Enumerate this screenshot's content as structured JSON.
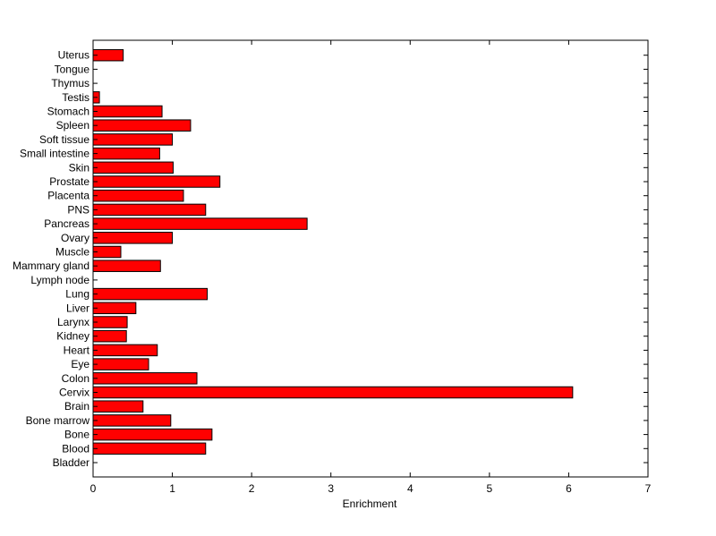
{
  "chart_data": {
    "type": "bar",
    "orientation": "horizontal",
    "title": "",
    "xlabel": "Enrichment",
    "ylabel": "",
    "xlim": [
      0,
      7
    ],
    "xticks": [
      0,
      1,
      2,
      3,
      4,
      5,
      6,
      7
    ],
    "grid": false,
    "legend": "none",
    "bar_color": "#ff0000",
    "bar_edge_color": "#000000",
    "categories": [
      "Bladder",
      "Blood",
      "Bone",
      "Bone marrow",
      "Brain",
      "Cervix",
      "Colon",
      "Eye",
      "Heart",
      "Kidney",
      "Larynx",
      "Liver",
      "Lung",
      "Lymph node",
      "Mammary gland",
      "Muscle",
      "Ovary",
      "Pancreas",
      "PNS",
      "Placenta",
      "Prostate",
      "Skin",
      "Small intestine",
      "Soft tissue",
      "Spleen",
      "Stomach",
      "Testis",
      "Thymus",
      "Tongue",
      "Uterus"
    ],
    "values": [
      0,
      1.42,
      1.5,
      0.98,
      0.63,
      6.05,
      1.31,
      0.7,
      0.81,
      0.42,
      0.43,
      0.54,
      1.44,
      0,
      0.85,
      0.35,
      1.0,
      2.7,
      1.42,
      1.14,
      1.6,
      1.01,
      0.84,
      1.0,
      1.23,
      0.87,
      0.08,
      0,
      0,
      0.38
    ]
  }
}
